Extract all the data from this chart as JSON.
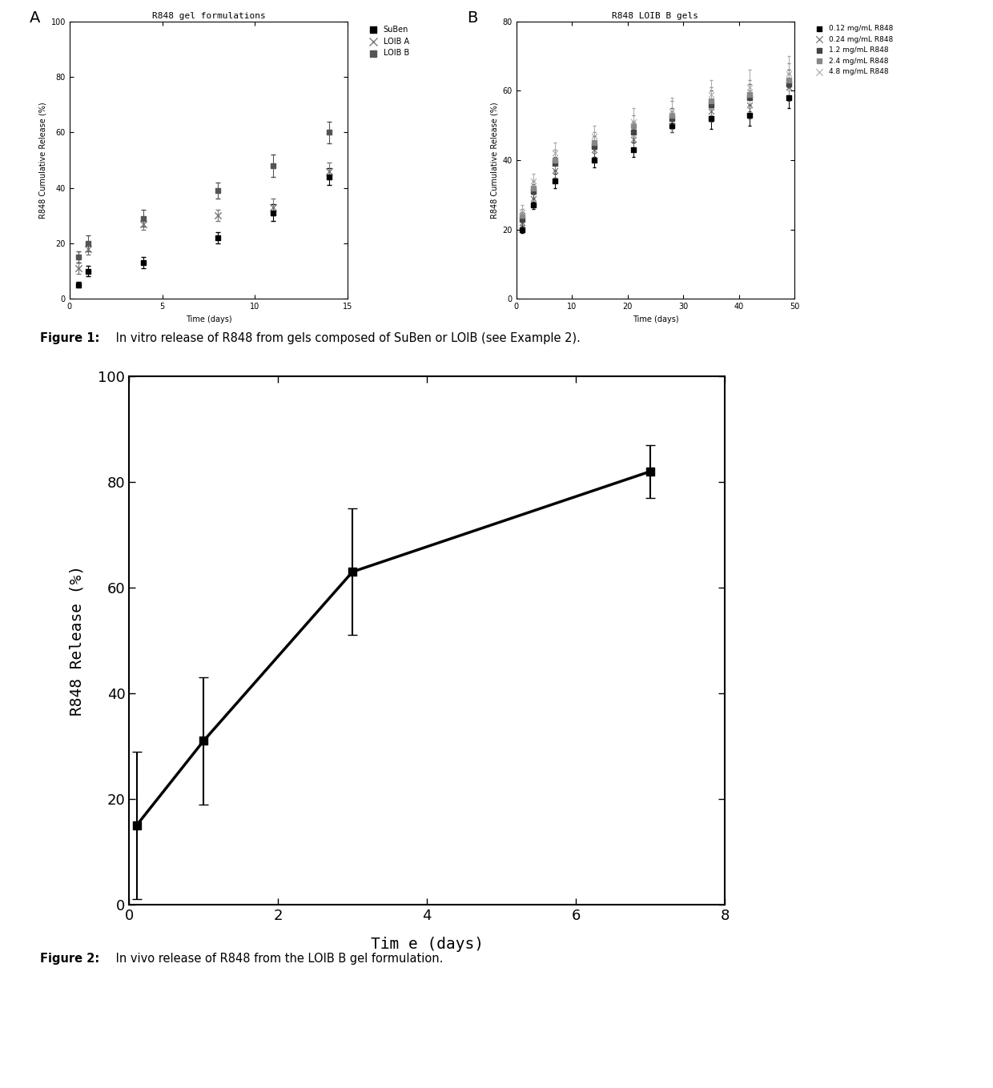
{
  "figA": {
    "title": "R848 gel formulations",
    "xlabel": "Time (days)",
    "ylabel": "R848 Cumulative Release (%)",
    "xlim": [
      0,
      15
    ],
    "ylim": [
      0,
      100
    ],
    "xticks": [
      0,
      5,
      10,
      15
    ],
    "yticks": [
      0,
      20,
      40,
      60,
      80,
      100
    ],
    "series": [
      {
        "label": "SuBen",
        "marker": "s",
        "color": "#000000",
        "markersize": 5,
        "x": [
          0.5,
          1,
          4,
          8,
          11,
          14
        ],
        "y": [
          5,
          10,
          13,
          22,
          31,
          44
        ],
        "yerr": [
          1,
          2,
          2,
          2,
          3,
          3
        ]
      },
      {
        "label": "LOIB A",
        "marker": "x",
        "color": "#888888",
        "markersize": 6,
        "x": [
          0.5,
          1,
          4,
          8,
          11,
          14
        ],
        "y": [
          11,
          18,
          27,
          30,
          33,
          46
        ],
        "yerr": [
          2,
          2,
          2,
          2,
          3,
          3
        ]
      },
      {
        "label": "LOIB B",
        "marker": "s",
        "color": "#555555",
        "markersize": 5,
        "x": [
          0.5,
          1,
          4,
          8,
          11,
          14
        ],
        "y": [
          15,
          20,
          29,
          39,
          48,
          60
        ],
        "yerr": [
          2,
          3,
          3,
          3,
          4,
          4
        ]
      }
    ]
  },
  "figB": {
    "title": "R848 LOIB B gels",
    "xlabel": "Time (days)",
    "ylabel": "R848 Cumulative Release (%)",
    "xlim": [
      0,
      50
    ],
    "ylim": [
      0,
      80
    ],
    "xticks": [
      0,
      10,
      20,
      30,
      40,
      50
    ],
    "yticks": [
      0,
      20,
      40,
      60,
      80
    ],
    "series": [
      {
        "label": "0.12 mg/mL R848",
        "marker": "s",
        "color": "#000000",
        "markersize": 4,
        "x": [
          1,
          3,
          7,
          14,
          21,
          28,
          35,
          42,
          49
        ],
        "y": [
          20,
          27,
          34,
          40,
          43,
          50,
          52,
          53,
          58
        ],
        "yerr": [
          1,
          1,
          2,
          2,
          2,
          2,
          3,
          3,
          3
        ]
      },
      {
        "label": "0.24 mg/mL R848",
        "marker": "x",
        "color": "#666666",
        "markersize": 5,
        "x": [
          1,
          3,
          7,
          14,
          21,
          28,
          35,
          42,
          49
        ],
        "y": [
          22,
          29,
          37,
          43,
          46,
          51,
          54,
          56,
          61
        ],
        "yerr": [
          1,
          2,
          2,
          2,
          3,
          3,
          3,
          4,
          4
        ]
      },
      {
        "label": "1.2 mg/mL R848",
        "marker": "s",
        "color": "#444444",
        "markersize": 4,
        "x": [
          1,
          3,
          7,
          14,
          21,
          28,
          35,
          42,
          49
        ],
        "y": [
          23,
          31,
          39,
          44,
          48,
          52,
          56,
          58,
          62
        ],
        "yerr": [
          2,
          2,
          2,
          3,
          3,
          3,
          4,
          4,
          4
        ]
      },
      {
        "label": "2.4 mg/mL R848",
        "marker": "s",
        "color": "#888888",
        "markersize": 4,
        "x": [
          1,
          3,
          7,
          14,
          21,
          28,
          35,
          42,
          49
        ],
        "y": [
          24,
          32,
          40,
          45,
          50,
          53,
          57,
          59,
          63
        ],
        "yerr": [
          2,
          2,
          3,
          3,
          3,
          4,
          4,
          4,
          5
        ]
      },
      {
        "label": "4.8 mg/mL R848",
        "marker": "x",
        "color": "#aaaaaa",
        "markersize": 5,
        "x": [
          1,
          3,
          7,
          14,
          21,
          28,
          35,
          42,
          49
        ],
        "y": [
          25,
          34,
          42,
          47,
          51,
          54,
          59,
          61,
          65
        ],
        "yerr": [
          2,
          2,
          3,
          3,
          4,
          4,
          4,
          5,
          5
        ]
      }
    ]
  },
  "figC": {
    "xlabel": "Tim e (days)",
    "ylabel": "R848 Release (%)",
    "xlim": [
      0,
      8
    ],
    "ylim": [
      0,
      100
    ],
    "xticks": [
      0,
      2,
      4,
      6,
      8
    ],
    "yticks": [
      0,
      20,
      40,
      60,
      80,
      100
    ],
    "x": [
      0.1,
      1,
      3,
      7
    ],
    "y": [
      15,
      31,
      63,
      82
    ],
    "yerr": [
      14,
      12,
      12,
      5
    ],
    "color": "#000000",
    "marker": "s",
    "markersize": 7,
    "linewidth": 2.5
  },
  "fig1_caption_bold": "Figure 1:",
  "fig1_caption_rest": " In vitro release of R848 from gels composed of SuBen or LOIB (see Example 2).",
  "fig2_caption_bold": "Figure 2:",
  "fig2_caption_rest": " In vivo release of R848 from the LOIB B gel formulation."
}
